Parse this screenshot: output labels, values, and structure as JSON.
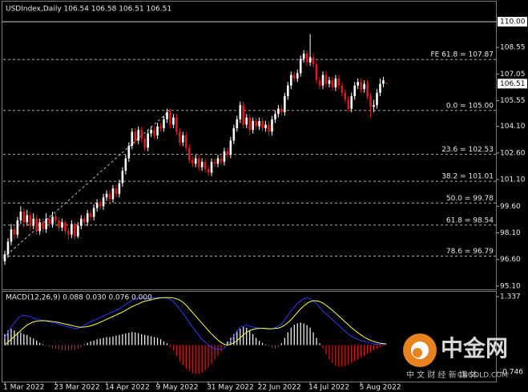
{
  "chart_data": [
    {
      "type": "candlestick",
      "title": "USDIndex,Daily  106.54 106.58 106.51 106.51",
      "up_color": "#ffffff",
      "down_color": "#e01818",
      "ylim": [
        94.87,
        110.41
      ],
      "yticks": [
        {
          "value": 108.55,
          "label": "108.55"
        },
        {
          "value": 107.05,
          "label": "107.05"
        },
        {
          "value": 105.55,
          "label": "105.55"
        },
        {
          "value": 104.1,
          "label": "104.10"
        },
        {
          "value": 102.6,
          "label": "102.60"
        },
        {
          "value": 101.1,
          "label": "101.10"
        },
        {
          "value": 99.6,
          "label": "99.60"
        },
        {
          "value": 98.1,
          "label": "98.10"
        },
        {
          "value": 96.6,
          "label": "96.60"
        },
        {
          "value": 95.1,
          "label": "95.10"
        }
      ],
      "highlight_level": {
        "value": 110,
        "label": "110.00"
      },
      "last_price": {
        "value": 106.51,
        "label": "106.51"
      },
      "fib_levels": [
        {
          "value": 107.87,
          "label": "FE 61.8 = 107.87"
        },
        {
          "value": 105,
          "label": "0.0 = 105.00"
        },
        {
          "value": 102.53,
          "label": "23.6 = 102.53"
        },
        {
          "value": 101.01,
          "label": "38.2 = 101.01"
        },
        {
          "value": 99.78,
          "label": "50.0 = 99.78"
        },
        {
          "value": 98.54,
          "label": "61.8 = 98.54"
        },
        {
          "value": 96.79,
          "label": "78.6 = 96.79"
        }
      ],
      "categories": [
        "1 Mar 2022",
        null,
        null,
        null,
        null,
        null,
        null,
        null,
        null,
        null,
        null,
        null,
        null,
        null,
        null,
        null,
        "23 Mar 2022",
        null,
        null,
        null,
        null,
        null,
        null,
        null,
        null,
        null,
        null,
        null,
        null,
        null,
        null,
        null,
        "14 Apr 2022",
        null,
        null,
        null,
        null,
        null,
        null,
        null,
        null,
        null,
        null,
        null,
        null,
        null,
        null,
        null,
        "9 May 2022",
        null,
        null,
        null,
        null,
        null,
        null,
        null,
        null,
        null,
        null,
        null,
        null,
        null,
        null,
        null,
        "31 May 2022",
        null,
        null,
        null,
        null,
        null,
        null,
        null,
        null,
        null,
        null,
        null,
        null,
        null,
        null,
        null,
        "22 Jun 2022",
        null,
        null,
        null,
        null,
        null,
        null,
        null,
        null,
        null,
        null,
        null,
        null,
        null,
        null,
        null,
        "14 Jul 2022",
        null,
        null,
        null,
        null,
        null,
        null,
        null,
        null,
        null,
        null,
        null,
        null,
        null,
        null,
        null,
        "5 Aug 2022",
        null,
        null,
        null,
        null,
        null,
        null,
        null,
        null
      ],
      "open": [
        96.5,
        96.9,
        97.6,
        98.3,
        98.0,
        98.8,
        99.3,
        98.7,
        99.1,
        98.5,
        98.9,
        98.2,
        98.7,
        98.3,
        98.9,
        98.6,
        99.0,
        98.8,
        98.4,
        98.7,
        98.2,
        98.0,
        98.6,
        97.9,
        98.5,
        98.9,
        98.7,
        99.2,
        99.0,
        99.5,
        99.8,
        99.6,
        100.1,
        100.3,
        100.0,
        100.6,
        100.3,
        100.9,
        101.6,
        102.3,
        103.0,
        103.8,
        103.3,
        103.9,
        103.4,
        102.9,
        103.7,
        103.9,
        103.6,
        104.1,
        104.0,
        104.5,
        104.9,
        104.2,
        104.6,
        103.8,
        103.2,
        103.6,
        102.9,
        102.2,
        102.0,
        102.3,
        101.8,
        102.1,
        101.7,
        101.5,
        102.1,
        102.0,
        102.3,
        102.1,
        102.7,
        102.5,
        103.3,
        104.0,
        104.5,
        105.3,
        104.2,
        104.6,
        103.9,
        104.4,
        104.1,
        104.4,
        104.0,
        104.2,
        103.8,
        104.5,
        104.8,
        105.1,
        104.9,
        105.8,
        106.4,
        107.0,
        106.8,
        107.1,
        107.9,
        108.2,
        107.7,
        108.0,
        107.6,
        106.7,
        106.4,
        107.0,
        106.5,
        106.7,
        106.3,
        106.8,
        106.4,
        106.0,
        105.6,
        105.1,
        105.8,
        106.4,
        106.6,
        106.2,
        106.5,
        105.8,
        105.2,
        105.3,
        106.0,
        106.5,
        106.54
      ],
      "high": [
        97.1,
        97.8,
        98.6,
        98.5,
        99.0,
        99.6,
        99.5,
        99.4,
        99.3,
        99.2,
        99.1,
        98.9,
        98.9,
        99.2,
        99.1,
        99.3,
        99.2,
        99.0,
        98.9,
        98.8,
        98.4,
        98.8,
        98.7,
        98.7,
        99.1,
        99.1,
        99.4,
        99.4,
        99.7,
        100.0,
        100.0,
        100.3,
        100.5,
        100.5,
        100.8,
        100.8,
        101.1,
        101.8,
        102.5,
        103.2,
        104.0,
        104.0,
        104.1,
        104.1,
        103.6,
        103.9,
        104.1,
        104.1,
        104.3,
        104.3,
        104.7,
        105.1,
        105.1,
        104.8,
        104.8,
        104.0,
        103.8,
        103.8,
        103.1,
        102.4,
        102.5,
        102.5,
        102.3,
        102.3,
        101.9,
        102.3,
        102.3,
        102.5,
        102.5,
        102.9,
        102.9,
        103.5,
        104.2,
        104.7,
        105.5,
        105.5,
        104.8,
        104.8,
        104.6,
        104.6,
        104.6,
        104.6,
        104.4,
        104.4,
        104.7,
        105.0,
        105.3,
        105.3,
        106.0,
        106.6,
        107.2,
        107.2,
        107.3,
        108.1,
        108.4,
        108.4,
        109.3,
        108.2,
        107.8,
        106.9,
        107.2,
        107.2,
        106.9,
        106.9,
        107.0,
        107.0,
        106.6,
        106.2,
        105.8,
        106.0,
        106.6,
        106.8,
        106.8,
        106.7,
        106.7,
        106.0,
        105.6,
        106.2,
        106.8,
        106.9,
        106.58
      ],
      "low": [
        96.3,
        96.7,
        97.4,
        97.7,
        97.8,
        98.6,
        98.4,
        98.5,
        98.2,
        98.3,
        98.0,
        98.0,
        98.1,
        98.1,
        98.4,
        98.4,
        98.5,
        98.2,
        98.2,
        98.0,
        97.7,
        97.8,
        97.7,
        97.8,
        98.3,
        98.5,
        98.5,
        98.8,
        98.8,
        99.3,
        99.4,
        99.4,
        99.9,
        99.8,
        99.8,
        100.1,
        100.1,
        100.7,
        101.4,
        102.1,
        102.8,
        103.1,
        103.1,
        103.2,
        102.7,
        102.7,
        103.5,
        103.4,
        103.4,
        103.8,
        103.8,
        104.3,
        104.0,
        104.0,
        103.6,
        103.0,
        103.0,
        102.7,
        102.0,
        101.8,
        101.8,
        101.6,
        101.6,
        101.5,
        101.3,
        101.3,
        101.8,
        101.8,
        101.9,
        101.9,
        102.3,
        102.3,
        103.1,
        103.8,
        104.3,
        104.0,
        104.0,
        103.6,
        103.7,
        103.9,
        103.9,
        103.8,
        103.8,
        103.6,
        103.6,
        104.3,
        104.6,
        104.7,
        104.7,
        105.6,
        106.2,
        106.6,
        106.6,
        106.9,
        107.7,
        107.5,
        107.5,
        107.4,
        106.5,
        106.2,
        106.2,
        106.3,
        106.3,
        106.1,
        106.1,
        106.2,
        105.8,
        105.4,
        104.9,
        104.9,
        105.6,
        106.2,
        106.0,
        106.0,
        105.6,
        104.6,
        104.9,
        105.1,
        105.8,
        106.3,
        106.51
      ],
      "close": [
        96.9,
        97.6,
        98.3,
        98.0,
        98.8,
        99.3,
        98.7,
        99.1,
        98.5,
        98.9,
        98.2,
        98.7,
        98.3,
        98.9,
        98.6,
        99.0,
        98.8,
        98.4,
        98.7,
        98.2,
        98.0,
        98.6,
        97.9,
        98.5,
        98.9,
        98.7,
        99.2,
        99.0,
        99.5,
        99.8,
        99.6,
        100.1,
        100.3,
        100.0,
        100.6,
        100.3,
        100.9,
        101.6,
        102.3,
        103.0,
        103.8,
        103.3,
        103.9,
        103.4,
        102.9,
        103.7,
        103.9,
        103.6,
        104.1,
        104.0,
        104.5,
        104.9,
        104.2,
        104.6,
        103.8,
        103.2,
        103.6,
        102.9,
        102.2,
        102.0,
        102.3,
        101.8,
        102.1,
        101.7,
        101.5,
        102.1,
        102.0,
        102.3,
        102.1,
        102.7,
        102.5,
        103.3,
        104.0,
        104.5,
        105.3,
        104.2,
        104.6,
        103.9,
        104.4,
        104.1,
        104.4,
        104.0,
        104.2,
        103.8,
        104.5,
        104.8,
        105.1,
        104.9,
        105.8,
        106.4,
        107.0,
        106.8,
        107.1,
        107.9,
        108.2,
        107.7,
        108.0,
        107.6,
        106.7,
        106.4,
        107.0,
        106.5,
        106.7,
        106.3,
        106.8,
        106.4,
        106.0,
        105.6,
        105.1,
        105.8,
        106.4,
        106.6,
        106.2,
        106.5,
        105.8,
        105.2,
        105.3,
        106.0,
        106.5,
        106.7,
        106.51
      ]
    },
    {
      "type": "macd",
      "title": "MACD(12,26,9) 0.088 0.030 0.076 0.000",
      "ylim": [
        -1.03,
        1.47
      ],
      "yticks": [
        1.337,
        -0.746
      ],
      "histogram": {
        "up_color": "#ffffff",
        "down_color": "#e01818",
        "values": [
          0.3,
          0.4,
          0.45,
          0.4,
          0.35,
          0.35,
          0.3,
          0.28,
          0.22,
          0.18,
          0.12,
          0.06,
          0.02,
          -0.02,
          -0.05,
          -0.08,
          -0.1,
          -0.12,
          -0.14,
          -0.15,
          -0.15,
          -0.14,
          -0.14,
          -0.1,
          -0.06,
          0.02,
          0.06,
          0.1,
          0.12,
          0.16,
          0.18,
          0.2,
          0.22,
          0.22,
          0.24,
          0.26,
          0.28,
          0.3,
          0.32,
          0.34,
          0.36,
          0.35,
          0.33,
          0.3,
          0.28,
          0.26,
          0.24,
          0.22,
          0.2,
          0.16,
          0.1,
          0.05,
          -0.05,
          -0.15,
          -0.3,
          -0.45,
          -0.55,
          -0.65,
          -0.72,
          -0.78,
          -0.8,
          -0.8,
          -0.76,
          -0.7,
          -0.62,
          -0.52,
          -0.4,
          -0.3,
          -0.18,
          -0.05,
          0.1,
          0.2,
          0.3,
          0.4,
          0.45,
          0.5,
          0.48,
          0.4,
          0.3,
          0.2,
          0.12,
          0.06,
          0.02,
          -0.04,
          -0.08,
          -0.1,
          -0.06,
          0.05,
          0.2,
          0.35,
          0.48,
          0.56,
          0.6,
          0.62,
          0.6,
          0.55,
          0.48,
          0.35,
          0.2,
          0.05,
          -0.1,
          -0.25,
          -0.4,
          -0.5,
          -0.56,
          -0.6,
          -0.6,
          -0.58,
          -0.55,
          -0.5,
          -0.45,
          -0.4,
          -0.35,
          -0.3,
          -0.25,
          -0.2,
          -0.15,
          -0.1,
          -0.06,
          -0.03,
          -0.01
        ]
      },
      "series": [
        {
          "color": "#2a3cff",
          "values": [
            0.2,
            0.35,
            0.5,
            0.62,
            0.72,
            0.8,
            0.82,
            0.8,
            0.78,
            0.75,
            0.72,
            0.7,
            0.68,
            0.66,
            0.64,
            0.62,
            0.6,
            0.58,
            0.55,
            0.52,
            0.5,
            0.48,
            0.45,
            0.46,
            0.5,
            0.55,
            0.6,
            0.64,
            0.68,
            0.72,
            0.76,
            0.8,
            0.84,
            0.88,
            0.92,
            0.96,
            1.0,
            1.06,
            1.12,
            1.18,
            1.24,
            1.27,
            1.3,
            1.3,
            1.28,
            1.28,
            1.3,
            1.3,
            1.31,
            1.31,
            1.3,
            1.3,
            1.26,
            1.2,
            1.1,
            0.98,
            0.88,
            0.76,
            0.62,
            0.5,
            0.38,
            0.26,
            0.16,
            0.08,
            0.0,
            -0.06,
            -0.1,
            -0.12,
            -0.12,
            -0.08,
            0.0,
            0.12,
            0.25,
            0.38,
            0.5,
            0.52,
            0.55,
            0.52,
            0.5,
            0.48,
            0.47,
            0.46,
            0.45,
            0.44,
            0.45,
            0.48,
            0.52,
            0.58,
            0.7,
            0.82,
            0.95,
            1.05,
            1.15,
            1.22,
            1.28,
            1.3,
            1.28,
            1.22,
            1.14,
            1.04,
            0.94,
            0.86,
            0.78,
            0.7,
            0.62,
            0.54,
            0.46,
            0.38,
            0.3,
            0.24,
            0.2,
            0.16,
            0.12,
            0.1,
            0.08,
            0.05,
            0.03,
            0.02,
            0.02,
            0.02,
            0.03
          ]
        },
        {
          "color": "#ffff40",
          "values": [
            0.0,
            0.08,
            0.16,
            0.24,
            0.32,
            0.4,
            0.48,
            0.55,
            0.6,
            0.64,
            0.66,
            0.67,
            0.67,
            0.67,
            0.66,
            0.65,
            0.64,
            0.62,
            0.6,
            0.58,
            0.56,
            0.54,
            0.52,
            0.5,
            0.49,
            0.5,
            0.51,
            0.53,
            0.56,
            0.59,
            0.63,
            0.67,
            0.71,
            0.75,
            0.79,
            0.83,
            0.87,
            0.91,
            0.96,
            1.01,
            1.06,
            1.1,
            1.14,
            1.18,
            1.21,
            1.23,
            1.25,
            1.27,
            1.29,
            1.3,
            1.31,
            1.31,
            1.31,
            1.3,
            1.28,
            1.24,
            1.18,
            1.1,
            1.0,
            0.9,
            0.8,
            0.7,
            0.6,
            0.5,
            0.4,
            0.31,
            0.22,
            0.14,
            0.07,
            0.02,
            0.0,
            0.02,
            0.06,
            0.12,
            0.2,
            0.28,
            0.35,
            0.4,
            0.43,
            0.45,
            0.46,
            0.46,
            0.46,
            0.45,
            0.45,
            0.46,
            0.47,
            0.5,
            0.55,
            0.62,
            0.7,
            0.8,
            0.9,
            1.0,
            1.08,
            1.15,
            1.2,
            1.22,
            1.22,
            1.2,
            1.16,
            1.1,
            1.03,
            0.96,
            0.88,
            0.8,
            0.72,
            0.64,
            0.56,
            0.48,
            0.41,
            0.34,
            0.28,
            0.22,
            0.17,
            0.13,
            0.1,
            0.07,
            0.05,
            0.04,
            0.03
          ]
        }
      ]
    }
  ],
  "watermark": {
    "brand": "中金网",
    "tagline": "中 文 财 经 新 媒 体",
    "site": "CNGOLD.COM"
  }
}
